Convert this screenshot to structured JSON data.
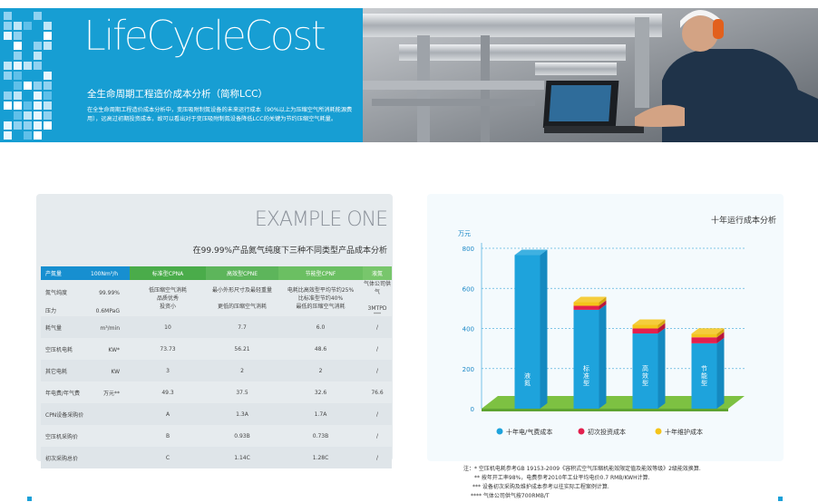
{
  "banner": {
    "title": "LifeCycleCost",
    "subtitle": "全生命周期工程造价成本分析（简称LCC）",
    "description": "在全生命周期工程造价成本分析中，变压吸附制氮设备的未来运行成本（90%以上为压缩空气所消耗能源费用），远高过初期投资成本，故可以看出对于变压吸附制氮设备降低LCC的关键为节约压缩空气耗量。"
  },
  "example": {
    "heading": "EXAMPLE ONE",
    "table_title": "在99.99%产品氮气纯度下三种不同类型产品成本分析",
    "header": {
      "c0a": "产氮量",
      "c0b": "100Nm³/h",
      "c1": "标准型CPNA",
      "c2": "高效型CPNE",
      "c3": "节能型CPNF",
      "c4": "液氮"
    },
    "rows": [
      {
        "a": "氮气纯度",
        "b": "99.99%",
        "c1": "低压缩空气消耗\n品质优秀\n投资小",
        "c2": "最小外形尺寸及最轻重量\n\n更低的压缩空气消耗",
        "c3": "电耗比高效型平均节约25%\n比标准型节约40%\n最低的压缩空气消耗",
        "c4": "气体公司供气\n\n3MTPD",
        "c4s": "****"
      },
      {
        "a": "压力",
        "b": "0.6MPaG",
        "c1": "",
        "c2": "",
        "c3": "",
        "c4": ""
      },
      {
        "a": "耗气量",
        "b": "m³/min",
        "c1": "10",
        "c2": "7.7",
        "c3": "6.0",
        "c4": "/"
      },
      {
        "a": "空压机电耗",
        "b": "KW*",
        "c1": "73.73",
        "c2": "56.21",
        "c3": "48.6",
        "c4": "/"
      },
      {
        "a": "其它电耗",
        "b": "KW",
        "c1": "3",
        "c2": "2",
        "c3": "2",
        "c4": "/"
      },
      {
        "a": "年电费/年气费",
        "b": "万元**",
        "c1": "49.3",
        "c2": "37.5",
        "c3": "32.6",
        "c4": "76.6"
      },
      {
        "a": "CPN设备采购价",
        "b": "",
        "c1": "A",
        "c2": "1.3A",
        "c3": "1.7A",
        "c4": "/"
      },
      {
        "a": "空压机采购价",
        "b": "",
        "c1": "B",
        "c2": "0.93B",
        "c3": "0.73B",
        "c4": "/"
      },
      {
        "a": "初次采购总价",
        "b": "",
        "c1": "C",
        "c2": "1.14C",
        "c3": "1.28C",
        "c4": "/"
      }
    ]
  },
  "chart_data": {
    "type": "bar",
    "title": "十年运行成本分析",
    "ylabel": "万元",
    "ylim": [
      0,
      800
    ],
    "yticks": [
      0,
      200,
      400,
      600,
      800
    ],
    "categories": [
      "液氮",
      "标准型",
      "高效型",
      "节能型"
    ],
    "series": [
      {
        "name": "十年电/气费成本",
        "color": "#1ea3dc",
        "values": [
          766,
          493,
          375,
          326
        ]
      },
      {
        "name": "初次投资成本",
        "color": "#e3204e",
        "values": [
          0,
          20,
          25,
          30
        ]
      },
      {
        "name": "十年维护成本",
        "color": "#f4c41a",
        "values": [
          0,
          18,
          18,
          18
        ]
      }
    ]
  },
  "notes": [
    "注：* 空压机电耗参考GB 19153-2009《容积式空气压缩机能效限定值及能效等级》2级能效换算.",
    "** 按年开工率98%，电费参考2010年工业平均电价0.7 RMB/KWH计算.",
    "*** 设备初次采购及维护成本参考以往实际工程案例计算.",
    "**** 气体公司供气按700RMB/T"
  ]
}
